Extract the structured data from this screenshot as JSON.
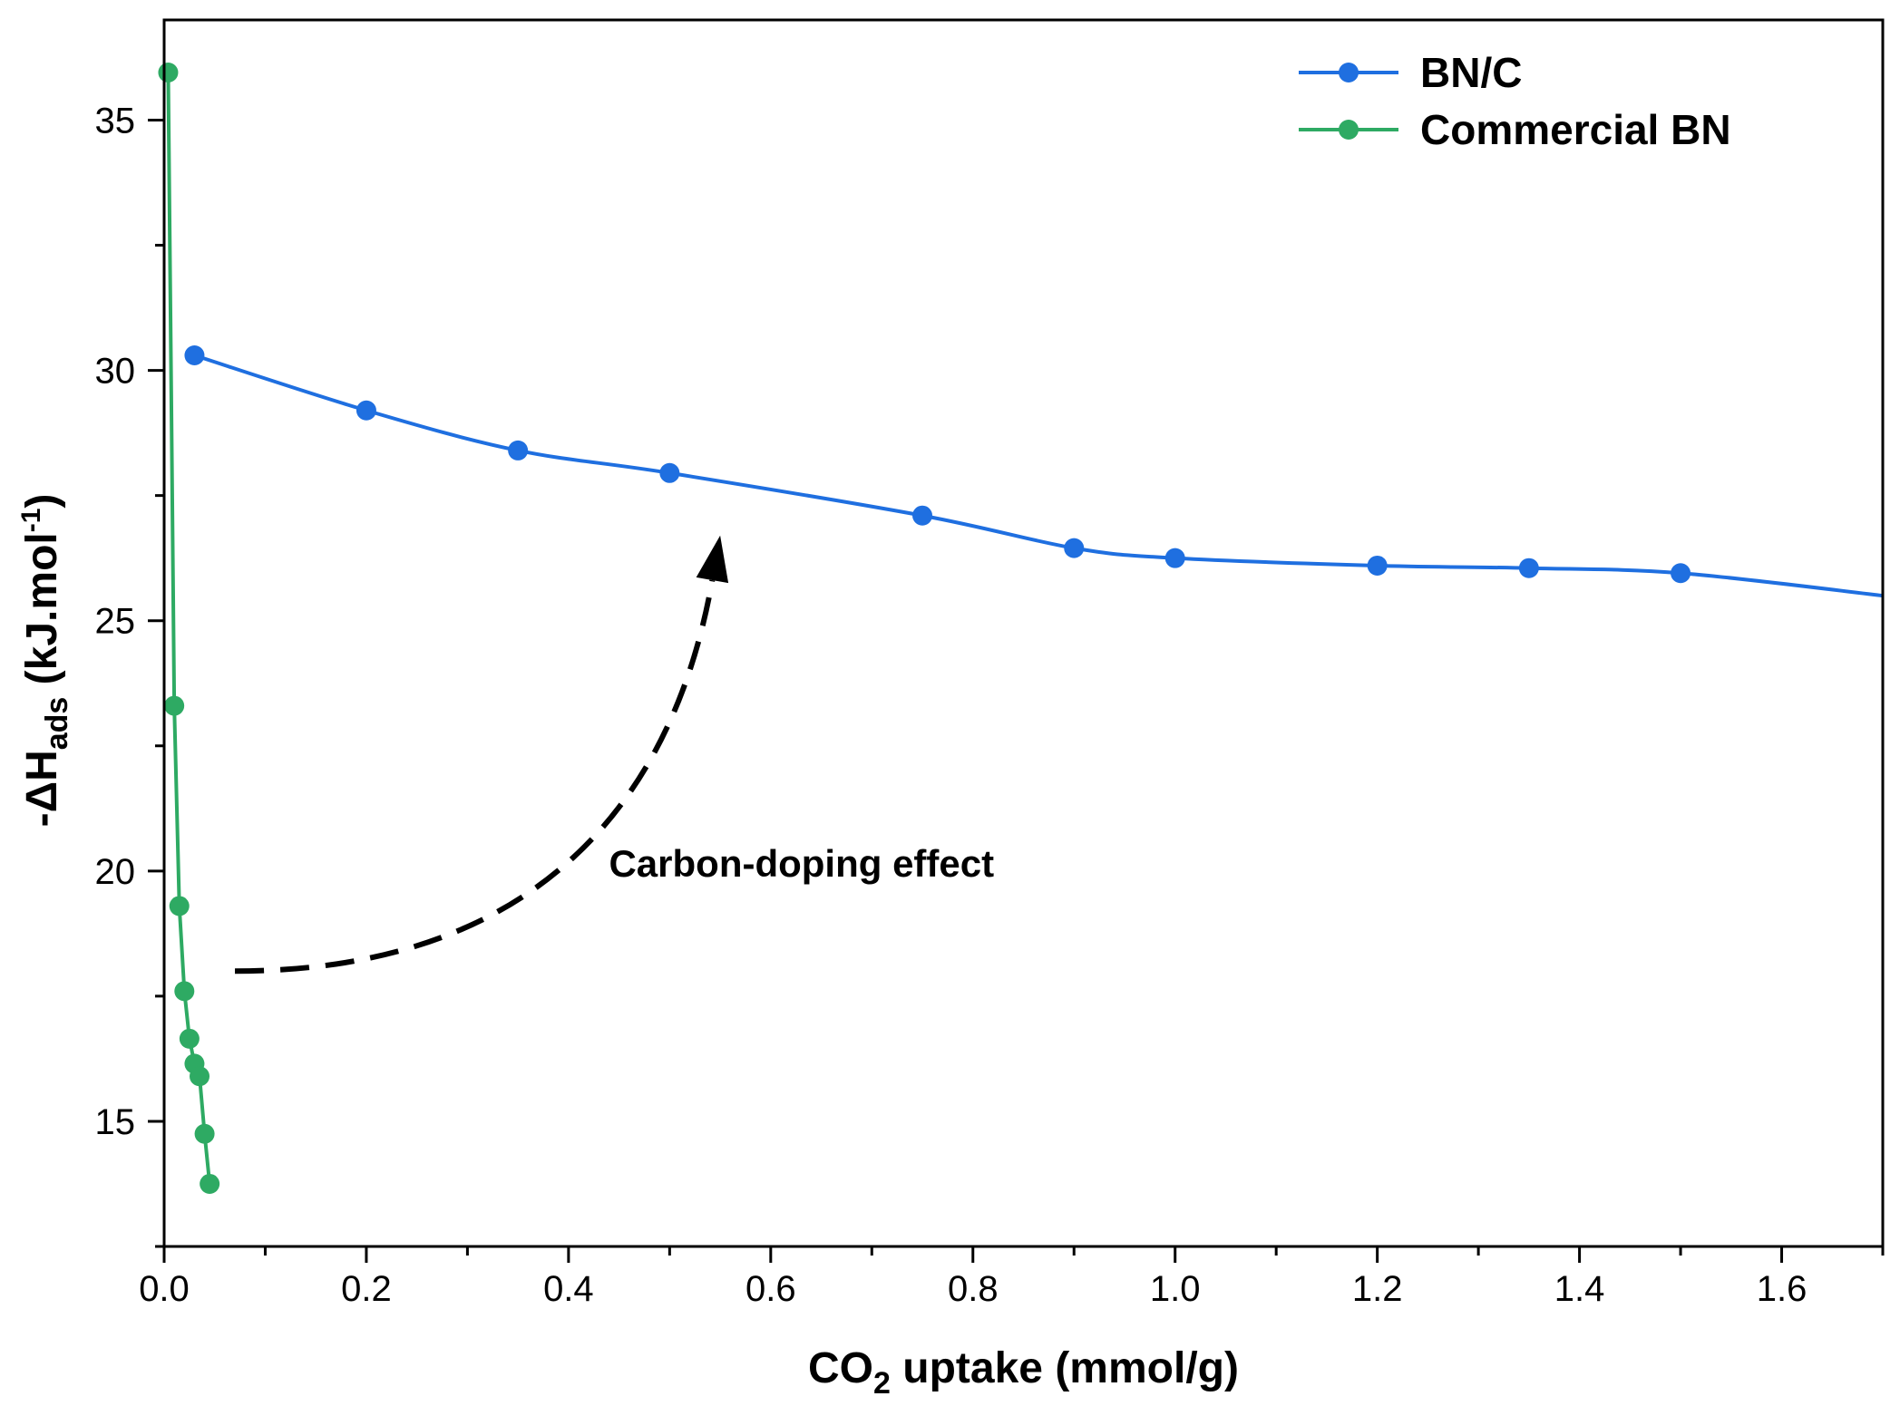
{
  "chart_data": {
    "type": "line",
    "x_axis": {
      "label_main": "CO",
      "label_sub": "2",
      "label_rest": " uptake (mmol/g)",
      "range": [
        0.0,
        1.7
      ],
      "ticks": [
        "0.0",
        "0.2",
        "0.4",
        "0.6",
        "0.8",
        "1.0",
        "1.2",
        "1.4",
        "1.6"
      ],
      "tick_values": [
        0.0,
        0.2,
        0.4,
        0.6,
        0.8,
        1.0,
        1.2,
        1.4,
        1.6
      ],
      "minor_step": 0.1
    },
    "y_axis": {
      "label_main": "-ΔH",
      "label_sub": "ads",
      "label_rest": " (kJ.mol",
      "label_sup": "-1",
      "label_end": ")",
      "range": [
        12.5,
        37.0
      ],
      "ticks": [
        "15",
        "20",
        "25",
        "30",
        "35"
      ],
      "tick_values": [
        15,
        20,
        25,
        30,
        35
      ],
      "minor_step": 2.5
    },
    "grid": false,
    "legend_position": "top-right",
    "series": [
      {
        "name": "BN/C",
        "color": "#1f6fe0",
        "x": [
          0.03,
          0.2,
          0.35,
          0.5,
          0.75,
          0.9,
          1.0,
          1.2,
          1.35,
          1.5
        ],
        "y": [
          30.3,
          29.2,
          28.4,
          27.95,
          27.1,
          26.45,
          26.25,
          26.1,
          26.05,
          25.95
        ],
        "line_end": [
          1.7,
          25.5
        ]
      },
      {
        "name": "Commercial BN",
        "color": "#2eaa63",
        "x": [
          0.004,
          0.01,
          0.015,
          0.02,
          0.025,
          0.03,
          0.035,
          0.04,
          0.045
        ],
        "y": [
          35.95,
          23.3,
          19.3,
          17.6,
          16.65,
          16.15,
          15.9,
          14.75,
          13.75
        ]
      }
    ],
    "annotation": {
      "text": "Carbon-doping effect",
      "arrow": {
        "style": "dashed",
        "from": [
          0.07,
          18.0
        ],
        "control1": [
          0.35,
          18.0
        ],
        "control2": [
          0.5,
          21.0
        ],
        "to": [
          0.55,
          26.7
        ]
      }
    }
  }
}
